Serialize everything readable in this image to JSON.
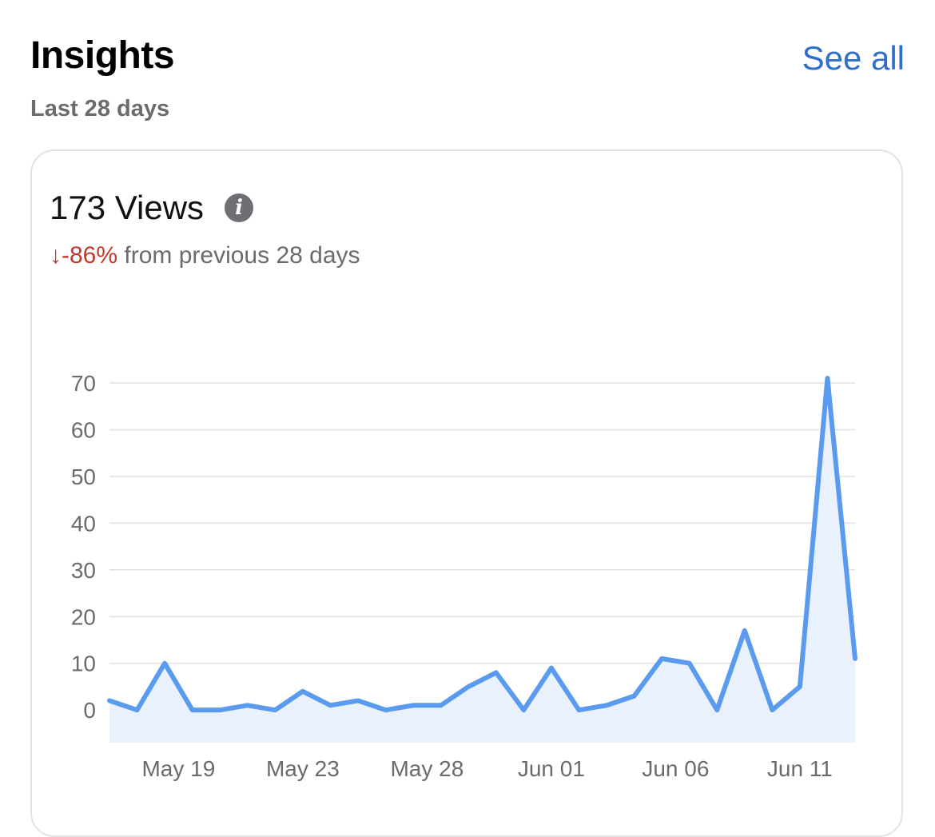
{
  "header": {
    "title": "Insights",
    "see_all_label": "See all",
    "period": "Last 28 days"
  },
  "card": {
    "metric": "173 Views",
    "info_icon": "info-icon",
    "change_arrow": "↓",
    "change_value": "-86%",
    "change_text": " from previous 28 days"
  },
  "colors": {
    "accent_link": "#2f6fca",
    "line": "#5b9bef",
    "area": "#e8f1fc",
    "negative": "#c0392b"
  },
  "chart_data": {
    "type": "area",
    "x_tick_labels": [
      "May 19",
      "May 23",
      "May 28",
      "Jun 01",
      "Jun 06",
      "Jun 11"
    ],
    "x_tick_indices": [
      2.5,
      7,
      11.5,
      16,
      20.5,
      25
    ],
    "y_ticks": [
      0,
      10,
      20,
      30,
      40,
      50,
      60,
      70
    ],
    "ylim": [
      -7,
      70
    ],
    "grid": true,
    "values": [
      2,
      0,
      10,
      0,
      0,
      1,
      0,
      4,
      1,
      2,
      0,
      1,
      1,
      5,
      8,
      0,
      9,
      0,
      1,
      3,
      11,
      10,
      0,
      17,
      0,
      5,
      71,
      11
    ]
  }
}
